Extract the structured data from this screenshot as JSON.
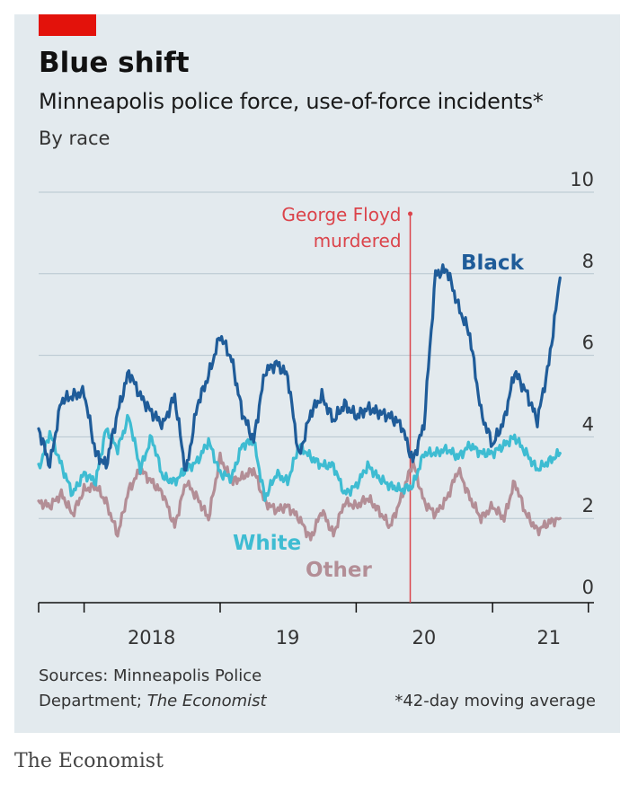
{
  "header": {
    "title": "Blue shift",
    "subtitle": "Minneapolis police force, use-of-force incidents*",
    "subsubtitle": "By race"
  },
  "annotation": {
    "line1": "George Floyd",
    "line2": "murdered",
    "date": "2020-05-25"
  },
  "footer": {
    "source_line1": "Sources: Minneapolis Police",
    "source_line2_prefix": "Department; ",
    "source_line2_italic": "The Economist",
    "note": "*42-day moving average",
    "brand": "The Economist"
  },
  "colors": {
    "accent_red": "#e3120b",
    "annotation_red": "#db444b",
    "black_series": "#1f5c99",
    "white_series": "#3ebcd2",
    "other_series": "#b38e96",
    "gridline": "#b7c6cf",
    "background": "#e3eaee"
  },
  "chart_data": {
    "type": "line",
    "title": "Blue shift",
    "subtitle": "Minneapolis police force, use-of-force incidents*",
    "note": "42-day moving average",
    "x_range": [
      "2017-09-01",
      "2021-09-30"
    ],
    "ylim": [
      0,
      10
    ],
    "y_ticks": [
      0,
      2,
      4,
      6,
      8,
      10
    ],
    "x_tick_labels": [
      {
        "label": "2018",
        "date": "2018-07-01"
      },
      {
        "label": "19",
        "date": "2019-07-01"
      },
      {
        "label": "20",
        "date": "2020-07-01"
      },
      {
        "label": "21",
        "date": "2021-06-01"
      }
    ],
    "grid": true,
    "legend": "inline labels",
    "series": [
      {
        "name": "Black",
        "points": [
          [
            "2017-09-01",
            4.2
          ],
          [
            "2017-10-01",
            3.3
          ],
          [
            "2017-11-01",
            4.9
          ],
          [
            "2017-12-01",
            5.0
          ],
          [
            "2018-01-01",
            5.1
          ],
          [
            "2018-02-01",
            3.6
          ],
          [
            "2018-03-01",
            3.3
          ],
          [
            "2018-04-01",
            4.6
          ],
          [
            "2018-05-01",
            5.6
          ],
          [
            "2018-06-01",
            5.0
          ],
          [
            "2018-07-01",
            4.6
          ],
          [
            "2018-08-01",
            4.3
          ],
          [
            "2018-09-01",
            5.0
          ],
          [
            "2018-10-01",
            3.1
          ],
          [
            "2018-11-01",
            4.8
          ],
          [
            "2018-12-01",
            5.5
          ],
          [
            "2019-01-01",
            6.5
          ],
          [
            "2019-02-01",
            5.9
          ],
          [
            "2019-03-01",
            4.6
          ],
          [
            "2019-04-01",
            3.9
          ],
          [
            "2019-05-01",
            5.6
          ],
          [
            "2019-06-01",
            5.8
          ],
          [
            "2019-07-01",
            5.5
          ],
          [
            "2019-08-01",
            3.5
          ],
          [
            "2019-09-01",
            4.6
          ],
          [
            "2019-10-01",
            5.0
          ],
          [
            "2019-11-01",
            4.4
          ],
          [
            "2019-12-01",
            4.8
          ],
          [
            "2020-01-01",
            4.5
          ],
          [
            "2020-02-01",
            4.7
          ],
          [
            "2020-03-01",
            4.6
          ],
          [
            "2020-04-01",
            4.5
          ],
          [
            "2020-05-01",
            4.3
          ],
          [
            "2020-06-01",
            3.4
          ],
          [
            "2020-07-01",
            4.3
          ],
          [
            "2020-08-01",
            8.0
          ],
          [
            "2020-09-01",
            8.1
          ],
          [
            "2020-10-01",
            7.2
          ],
          [
            "2020-11-01",
            6.5
          ],
          [
            "2020-12-01",
            4.6
          ],
          [
            "2021-01-01",
            3.8
          ],
          [
            "2021-02-01",
            4.4
          ],
          [
            "2021-03-01",
            5.6
          ],
          [
            "2021-04-01",
            5.1
          ],
          [
            "2021-05-01",
            4.4
          ],
          [
            "2021-06-01",
            5.8
          ],
          [
            "2021-07-01",
            7.9
          ]
        ]
      },
      {
        "name": "White",
        "points": [
          [
            "2017-09-01",
            3.2
          ],
          [
            "2017-10-01",
            4.1
          ],
          [
            "2017-11-01",
            3.3
          ],
          [
            "2017-12-01",
            2.6
          ],
          [
            "2018-01-01",
            3.1
          ],
          [
            "2018-02-01",
            2.9
          ],
          [
            "2018-03-01",
            4.2
          ],
          [
            "2018-04-01",
            3.7
          ],
          [
            "2018-05-01",
            4.5
          ],
          [
            "2018-06-01",
            3.2
          ],
          [
            "2018-07-01",
            4.0
          ],
          [
            "2018-08-01",
            3.0
          ],
          [
            "2018-09-01",
            2.9
          ],
          [
            "2018-10-01",
            3.2
          ],
          [
            "2018-11-01",
            3.4
          ],
          [
            "2018-12-01",
            3.9
          ],
          [
            "2019-01-01",
            3.1
          ],
          [
            "2019-02-01",
            3.0
          ],
          [
            "2019-03-01",
            3.8
          ],
          [
            "2019-04-01",
            3.9
          ],
          [
            "2019-05-01",
            2.5
          ],
          [
            "2019-06-01",
            3.1
          ],
          [
            "2019-07-01",
            2.9
          ],
          [
            "2019-08-01",
            3.8
          ],
          [
            "2019-09-01",
            3.5
          ],
          [
            "2019-10-01",
            3.3
          ],
          [
            "2019-11-01",
            3.3
          ],
          [
            "2019-12-01",
            2.6
          ],
          [
            "2020-01-01",
            2.8
          ],
          [
            "2020-02-01",
            3.3
          ],
          [
            "2020-03-01",
            3.0
          ],
          [
            "2020-04-01",
            2.8
          ],
          [
            "2020-05-01",
            2.7
          ],
          [
            "2020-06-01",
            2.8
          ],
          [
            "2020-07-01",
            3.6
          ],
          [
            "2020-08-01",
            3.6
          ],
          [
            "2020-09-01",
            3.7
          ],
          [
            "2020-10-01",
            3.5
          ],
          [
            "2020-11-01",
            3.8
          ],
          [
            "2020-12-01",
            3.6
          ],
          [
            "2021-01-01",
            3.6
          ],
          [
            "2021-02-01",
            3.8
          ],
          [
            "2021-03-01",
            4.0
          ],
          [
            "2021-04-01",
            3.6
          ],
          [
            "2021-05-01",
            3.2
          ],
          [
            "2021-06-01",
            3.4
          ],
          [
            "2021-07-01",
            3.6
          ]
        ]
      },
      {
        "name": "Other",
        "points": [
          [
            "2017-09-01",
            2.4
          ],
          [
            "2017-10-01",
            2.3
          ],
          [
            "2017-11-01",
            2.6
          ],
          [
            "2017-12-01",
            2.1
          ],
          [
            "2018-01-01",
            2.7
          ],
          [
            "2018-02-01",
            2.8
          ],
          [
            "2018-03-01",
            2.4
          ],
          [
            "2018-04-01",
            1.6
          ],
          [
            "2018-05-01",
            2.7
          ],
          [
            "2018-06-01",
            3.2
          ],
          [
            "2018-07-01",
            2.9
          ],
          [
            "2018-08-01",
            2.6
          ],
          [
            "2018-09-01",
            1.8
          ],
          [
            "2018-10-01",
            2.9
          ],
          [
            "2018-11-01",
            2.5
          ],
          [
            "2018-12-01",
            2.0
          ],
          [
            "2019-01-01",
            3.5
          ],
          [
            "2019-02-01",
            2.9
          ],
          [
            "2019-03-01",
            3.0
          ],
          [
            "2019-04-01",
            3.2
          ],
          [
            "2019-05-01",
            2.4
          ],
          [
            "2019-06-01",
            2.2
          ],
          [
            "2019-07-01",
            2.3
          ],
          [
            "2019-08-01",
            2.0
          ],
          [
            "2019-09-01",
            1.5
          ],
          [
            "2019-10-01",
            2.2
          ],
          [
            "2019-11-01",
            1.6
          ],
          [
            "2019-12-01",
            2.4
          ],
          [
            "2020-01-01",
            2.3
          ],
          [
            "2020-02-01",
            2.5
          ],
          [
            "2020-03-01",
            2.2
          ],
          [
            "2020-04-01",
            1.8
          ],
          [
            "2020-05-01",
            2.5
          ],
          [
            "2020-06-01",
            3.4
          ],
          [
            "2020-07-01",
            2.4
          ],
          [
            "2020-08-01",
            2.1
          ],
          [
            "2020-09-01",
            2.5
          ],
          [
            "2020-10-01",
            3.2
          ],
          [
            "2020-11-01",
            2.5
          ],
          [
            "2020-12-01",
            2.0
          ],
          [
            "2021-01-01",
            2.3
          ],
          [
            "2021-02-01",
            2.0
          ],
          [
            "2021-03-01",
            2.9
          ],
          [
            "2021-04-01",
            2.1
          ],
          [
            "2021-05-01",
            1.7
          ],
          [
            "2021-06-01",
            1.9
          ],
          [
            "2021-07-01",
            2.0
          ]
        ]
      }
    ],
    "series_label_positions": [
      "upper right of line",
      "below line",
      "below line"
    ]
  }
}
